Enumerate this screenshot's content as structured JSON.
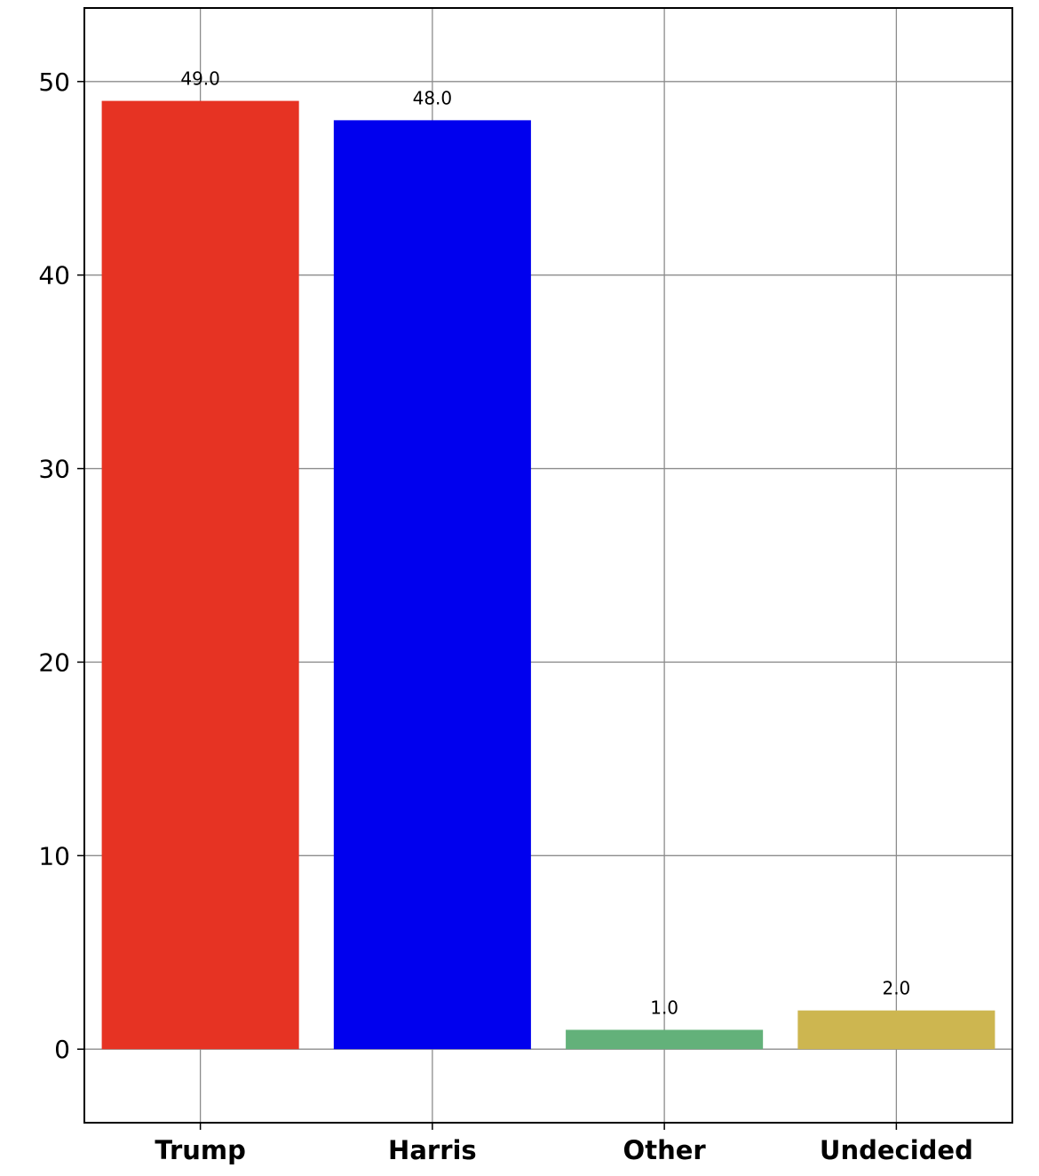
{
  "chart_data": {
    "type": "bar",
    "title": "",
    "xlabel": "",
    "ylabel": "",
    "categories": [
      "Trump",
      "Harris",
      "Other",
      "Undecided"
    ],
    "values": [
      49.0,
      48.0,
      1.0,
      2.0
    ],
    "value_labels": [
      "49.0",
      "48.0",
      "1.0",
      "2.0"
    ],
    "bar_colors": [
      "#e63323",
      "#0000ee",
      "#63b17a",
      "#cdb650"
    ],
    "ylim": [
      -3.8,
      53.8
    ],
    "yticks": [
      0,
      10,
      20,
      30,
      40,
      50
    ],
    "ytick_labels": [
      "0",
      "10",
      "20",
      "30",
      "40",
      "50"
    ],
    "grid": true,
    "legend": "none"
  }
}
